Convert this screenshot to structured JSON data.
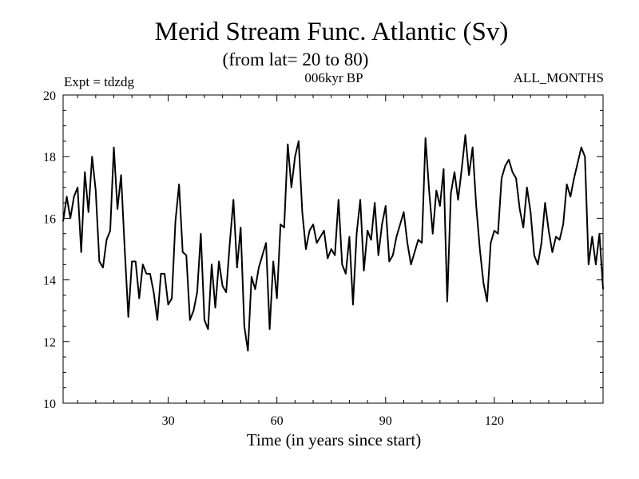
{
  "chart_data": {
    "type": "line",
    "title": "Merid Stream Func. Atlantic (Sv)",
    "subtitle": "(from lat= 20 to 80)",
    "header_left": "Expt = tdzdg",
    "header_center": "006kyr BP",
    "header_right": "ALL_MONTHS",
    "xlabel": "Time (in years since start)",
    "ylabel": "",
    "xlim": [
      1,
      150
    ],
    "ylim": [
      10,
      20
    ],
    "xticks": [
      30,
      60,
      90,
      120
    ],
    "yticks": [
      10,
      12,
      14,
      16,
      18,
      20
    ],
    "grid": false,
    "series": [
      {
        "name": "Merid Stream Func. Atlantic",
        "color": "#000000",
        "x_start": 1,
        "x_step": 1,
        "values": [
          15.9,
          16.7,
          16.0,
          16.7,
          17.0,
          14.9,
          17.5,
          16.2,
          18.0,
          16.9,
          14.6,
          14.4,
          15.3,
          15.6,
          18.3,
          16.3,
          17.4,
          15.0,
          12.8,
          14.6,
          14.6,
          13.4,
          14.5,
          14.2,
          14.2,
          13.6,
          12.7,
          14.2,
          14.2,
          13.2,
          13.4,
          15.9,
          17.1,
          14.9,
          14.8,
          12.7,
          13.0,
          13.6,
          15.5,
          12.7,
          12.4,
          14.5,
          13.1,
          14.6,
          13.8,
          13.6,
          15.2,
          16.6,
          14.4,
          15.7,
          12.5,
          11.7,
          14.1,
          13.7,
          14.4,
          14.8,
          15.2,
          12.4,
          14.6,
          13.4,
          15.8,
          15.7,
          18.4,
          17.0,
          18.0,
          18.5,
          16.2,
          15.0,
          15.6,
          15.8,
          15.2,
          15.4,
          15.6,
          14.7,
          15.0,
          14.8,
          16.6,
          14.5,
          14.2,
          15.4,
          13.2,
          15.5,
          16.6,
          14.3,
          15.6,
          15.3,
          16.5,
          14.8,
          15.8,
          16.4,
          14.6,
          14.8,
          15.4,
          15.8,
          16.2,
          15.2,
          14.5,
          14.9,
          15.3,
          15.2,
          18.6,
          16.9,
          15.5,
          16.9,
          16.4,
          17.6,
          13.3,
          16.8,
          17.5,
          16.6,
          17.6,
          18.7,
          17.4,
          18.3,
          16.4,
          15.0,
          13.9,
          13.3,
          15.2,
          15.6,
          15.5,
          17.3,
          17.7,
          17.9,
          17.5,
          17.3,
          16.3,
          15.7,
          17.0,
          16.2,
          14.8,
          14.5,
          15.2,
          16.5,
          15.6,
          14.9,
          15.4,
          15.3,
          15.8,
          17.1,
          16.7,
          17.3,
          17.8,
          18.3,
          18.0,
          14.5,
          15.4,
          14.5,
          15.5,
          13.7
        ]
      }
    ]
  }
}
